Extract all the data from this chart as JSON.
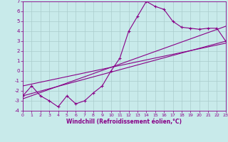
{
  "xlabel": "Windchill (Refroidissement éolien,°C)",
  "bg_color": "#c8eaea",
  "line_color": "#880088",
  "grid_color": "#aacccc",
  "xlim": [
    0,
    23
  ],
  "ylim": [
    -4,
    7
  ],
  "xticks": [
    0,
    1,
    2,
    3,
    4,
    5,
    6,
    7,
    8,
    9,
    10,
    11,
    12,
    13,
    14,
    15,
    16,
    17,
    18,
    19,
    20,
    21,
    22,
    23
  ],
  "yticks": [
    -4,
    -3,
    -2,
    -1,
    0,
    1,
    2,
    3,
    4,
    5,
    6,
    7
  ],
  "zigzag_x": [
    0,
    1,
    2,
    3,
    4,
    5,
    6,
    7,
    8,
    9,
    10,
    11,
    12,
    13,
    14,
    15,
    16,
    17,
    18,
    19,
    20,
    21,
    22,
    23
  ],
  "zigzag_y": [
    -2.5,
    -1.5,
    -2.5,
    -3.0,
    -3.6,
    -2.5,
    -3.3,
    -3.0,
    -2.2,
    -1.5,
    0.0,
    1.3,
    4.0,
    5.5,
    7.0,
    6.5,
    6.2,
    5.0,
    4.4,
    4.3,
    4.2,
    4.3,
    4.3,
    3.0
  ],
  "line1_x": [
    0,
    23
  ],
  "line1_y": [
    -2.8,
    4.5
  ],
  "line2_x": [
    0,
    23
  ],
  "line2_y": [
    -1.5,
    2.8
  ],
  "line3_x": [
    0,
    23
  ],
  "line3_y": [
    -2.5,
    3.0
  ]
}
